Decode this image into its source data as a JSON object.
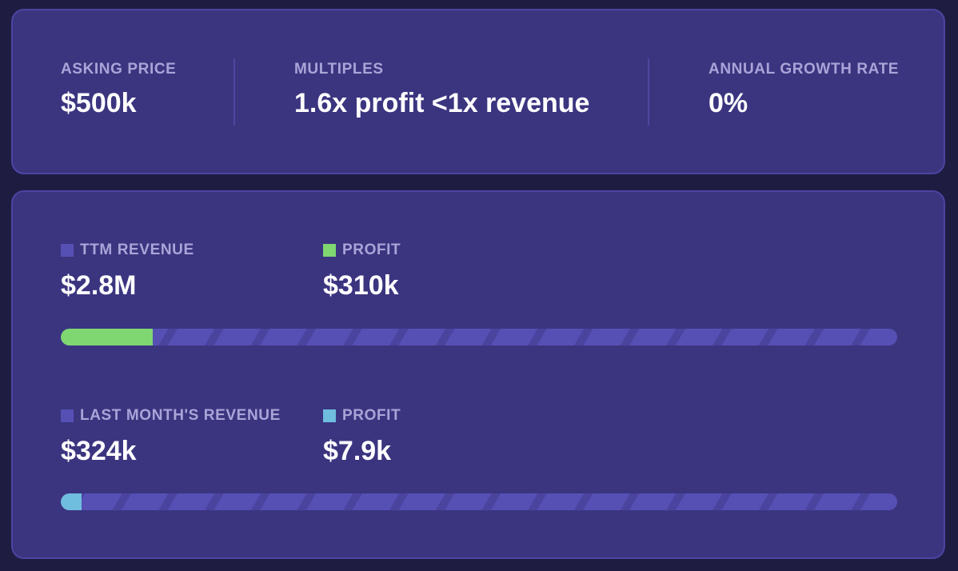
{
  "summary": {
    "asking_price": {
      "label": "ASKING PRICE",
      "value": "$500k"
    },
    "multiples": {
      "label": "MULTIPLES",
      "value": "1.6x profit <1x revenue"
    },
    "growth": {
      "label": "ANNUAL GROWTH RATE",
      "value": "0%"
    }
  },
  "ttm": {
    "revenue_label": "TTM REVENUE",
    "revenue_value": "$2.8M",
    "profit_label": "PROFIT",
    "profit_value": "$310k",
    "profit_fraction": 0.11,
    "revenue_color": "#5650b5",
    "profit_color": "#7ed771"
  },
  "last_month": {
    "revenue_label": "LAST MONTH'S REVENUE",
    "revenue_value": "$324k",
    "profit_label": "PROFIT",
    "profit_value": "$7.9k",
    "profit_fraction": 0.025,
    "revenue_color": "#5650b5",
    "profit_color": "#6fbddf"
  }
}
